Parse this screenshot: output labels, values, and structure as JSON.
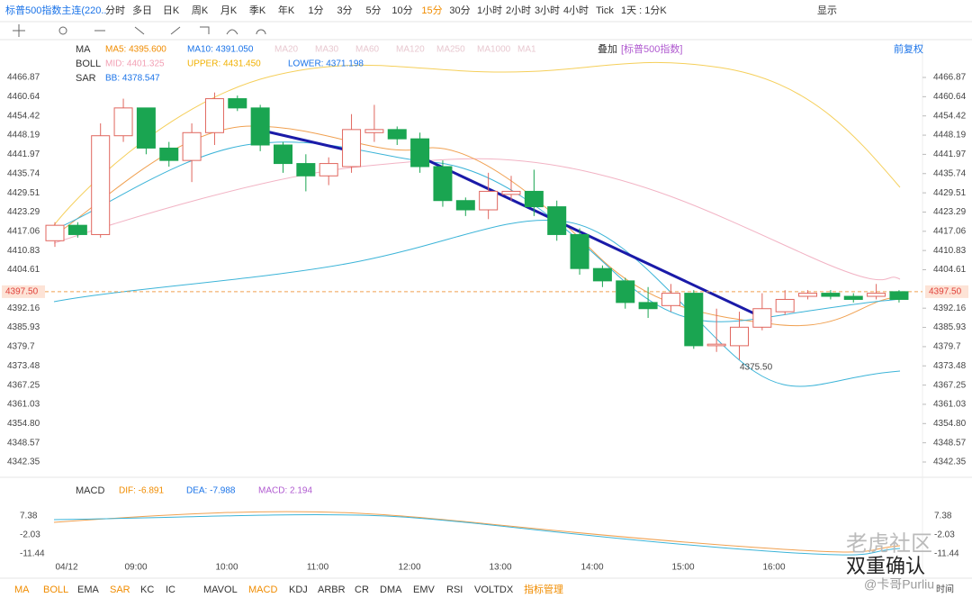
{
  "toolbar": {
    "title": "标普500指数主连(220...",
    "periods": [
      "分时",
      "多日",
      "日K",
      "周K",
      "月K",
      "季K",
      "年K",
      "1分",
      "3分",
      "5分",
      "10分",
      "15分",
      "30分",
      "1小时",
      "2小时",
      "3小时",
      "4小时",
      "Tick"
    ],
    "active": "15分",
    "range": "1天 : 1分K",
    "display": "显示"
  },
  "indicators": {
    "ma": {
      "name": "MA",
      "items": [
        "MA5: 4395.600",
        "MA10: 4391.050"
      ],
      "faded": [
        "MA20",
        "MA30",
        "MA60",
        "MA120",
        "MA250",
        "MA1000",
        "MA1"
      ]
    },
    "boll": {
      "name": "BOLL",
      "items": [
        "MID: 4401.325",
        "UPPER: 4431.450",
        "LOWER: 4371.198"
      ]
    },
    "sar": {
      "name": "SAR",
      "items": [
        "BB: 4378.547"
      ]
    },
    "overlay": "叠加",
    "overlay_name": "[标普500指数]",
    "adjust": "前复权",
    "macd": {
      "name": "MACD",
      "items": [
        "DIF: -6.891",
        "DEA: -7.988",
        "MACD: 2.194"
      ]
    }
  },
  "chart_data": {
    "type": "candlestick",
    "ylim": [
      4337.39,
      4478.83
    ],
    "yticks": [
      4466.87,
      4460.64,
      4454.42,
      4448.19,
      4441.97,
      4435.74,
      4429.51,
      4423.29,
      4417.06,
      4410.83,
      4404.61,
      4392.16,
      4385.93,
      4379.7,
      {
        "value": 4373.48,
        "label": "4373.48"
      },
      4367.25,
      4361.03,
      {
        "value": 4354.8,
        "label": "4354.80"
      },
      4348.57,
      4342.35
    ],
    "current_price": {
      "value": 4397.5,
      "label": "4397.50"
    },
    "annotation": "4375.50",
    "up_color": "#e0665e",
    "down_color": "#1aa551",
    "candles": [
      [
        4414,
        4420,
        4412,
        4419
      ],
      [
        4419,
        4420,
        4415,
        4416
      ],
      [
        4416,
        4452,
        4415,
        4448
      ],
      [
        4448,
        4460,
        4446,
        4457
      ],
      [
        4457,
        4457,
        4442,
        4444
      ],
      [
        4444,
        4446,
        4438,
        4440
      ],
      [
        4440,
        4452,
        4433,
        4449
      ],
      [
        4449,
        4462,
        4445,
        4460
      ],
      [
        4460,
        4461,
        4456,
        4457
      ],
      [
        4457,
        4458,
        4443,
        4445
      ],
      [
        4445,
        4446,
        4436,
        4439
      ],
      [
        4439,
        4442,
        4430,
        4435
      ],
      [
        4435,
        4441,
        4432,
        4439
      ],
      [
        4438,
        4455,
        4436,
        4450
      ],
      [
        4449,
        4458,
        4446,
        4450
      ],
      [
        4450,
        4451,
        4445,
        4447
      ],
      [
        4447,
        4449,
        4436,
        4438
      ],
      [
        4438,
        4440,
        4425,
        4427
      ],
      [
        4427,
        4428,
        4422,
        4424
      ],
      [
        4424,
        4436,
        4421,
        4430
      ],
      [
        4429,
        4435,
        4427,
        4430
      ],
      [
        4430,
        4437,
        4422,
        4425
      ],
      [
        4425,
        4427,
        4414,
        4416
      ],
      [
        4416,
        4418,
        4403,
        4405
      ],
      [
        4405,
        4406,
        4399,
        4401
      ],
      [
        4401,
        4402,
        4392,
        4394
      ],
      [
        4394,
        4399,
        4389,
        4392
      ],
      [
        4393,
        4400,
        4391,
        4397
      ],
      [
        4397,
        4398,
        4379,
        4380
      ],
      [
        4380,
        4392,
        4378,
        4380.5
      ],
      [
        4380,
        4391,
        4375.5,
        4386
      ],
      [
        4386,
        4397,
        4385,
        4392
      ],
      [
        4391,
        4398,
        4390,
        4395
      ],
      [
        4396,
        4398,
        4395,
        4397
      ],
      [
        4397,
        4398,
        4395,
        4396
      ],
      [
        4396,
        4397,
        4394,
        4395
      ],
      [
        4396,
        4400,
        4395,
        4397
      ],
      [
        4397.5,
        4398,
        4394,
        4395
      ]
    ],
    "x_labels": [
      "04/12",
      "09:00",
      "10:00",
      "11:00",
      "12:00",
      "13:00",
      "14:00",
      "15:00",
      "16:00"
    ],
    "macd_ticks": [
      "7.38",
      "-2.03",
      "-11.44"
    ],
    "x_axis_label": "时间"
  },
  "bottom_tabs": [
    "MA",
    "BOLL",
    "EMA",
    "SAR",
    "KC",
    "IC",
    "MAVOL",
    "MACD",
    "KDJ",
    "ARBR",
    "CR",
    "DMA",
    "EMV",
    "RSI",
    "VOLTDX",
    "指标管理"
  ],
  "watermark": {
    "brand": "老虎社区",
    "caption": "双重确认",
    "author": "@卡哥Purliu"
  }
}
